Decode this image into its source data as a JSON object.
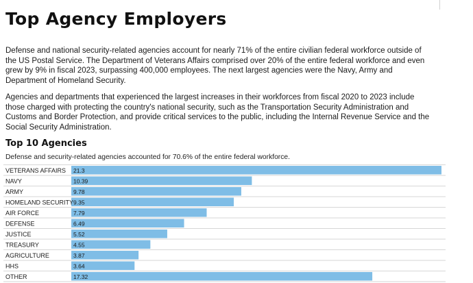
{
  "title": "Top Agency Employers",
  "paragraphs": [
    "Defense and national security-related agencies account for nearly 71% of the entire civilian federal workforce outside of the US Postal Service. The Department of Veterans Affairs comprised over 20% of the entire federal workforce and even grew by 9% in fiscal 2023, surpassing 400,000 employees. The next largest agencies were the Navy, Army and Department of Homeland Security.",
    "Agencies and departments that experienced the largest increases in their workforces from fiscal 2020 to 2023 include those charged with protecting the country's national security, such as the Transportation Security Administration and Customs and Border Protection, and provide critical services to the public, including the Internal Revenue Service and the Social Security Administration."
  ],
  "chart_data": {
    "type": "bar",
    "orientation": "horizontal",
    "title": "Top 10 Agencies",
    "subtitle": "Defense and security-related agencies accounted for 70.6% of the entire federal workforce.",
    "categories": [
      "VETERANS AFFAIRS",
      "NAVY",
      "ARMY",
      "HOMELAND SECURITY",
      "AIR FORCE",
      "DEFENSE",
      "JUSTICE",
      "TREASURY",
      "AGRICULTURE",
      "HHS",
      "OTHER"
    ],
    "values": [
      21.3,
      10.39,
      9.78,
      9.35,
      7.79,
      6.49,
      5.52,
      4.55,
      3.87,
      3.64,
      17.32
    ],
    "value_labels": [
      "21.3",
      "10.39",
      "9.78",
      "9.35",
      "7.79",
      "6.49",
      "5.52",
      "4.55",
      "3.87",
      "3.64",
      "17.32"
    ],
    "xlim": [
      0,
      21.3
    ],
    "xlabel": "",
    "ylabel": "",
    "grid": false,
    "bar_color": "#7fbde6"
  }
}
